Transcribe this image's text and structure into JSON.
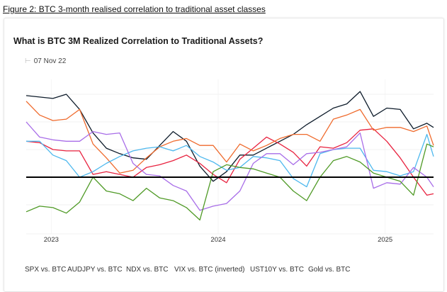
{
  "caption": "Figure 2: BTC 3-month realised correlation to traditional asset classes",
  "chart_data": {
    "type": "line",
    "title": "What is BTC 3M Realized Correlation to Traditional Assets?",
    "date_label": "07 Nov 22",
    "xlabel": "",
    "ylabel": "",
    "x_tick_labels": [
      "2023",
      "2024",
      "2025"
    ],
    "x_ticks": [
      2023,
      2024,
      2025
    ],
    "xlim": [
      2022.85,
      2025.29
    ],
    "ylim": [
      -0.35,
      0.69
    ],
    "zero_line": 0,
    "grid": true,
    "legend_position": "bottom",
    "x": [
      2022.85,
      2022.93,
      2023.01,
      2023.09,
      2023.17,
      2023.25,
      2023.33,
      2023.41,
      2023.49,
      2023.57,
      2023.65,
      2023.73,
      2023.81,
      2023.89,
      2023.97,
      2024.05,
      2024.13,
      2024.21,
      2024.29,
      2024.37,
      2024.45,
      2024.53,
      2024.61,
      2024.69,
      2024.77,
      2024.85,
      2024.93,
      2025.01,
      2025.09,
      2025.17,
      2025.25,
      2025.29
    ],
    "series": [
      {
        "name": "SPX vs. BTC",
        "color": "#0d1b2a",
        "values": [
          0.59,
          0.58,
          0.57,
          0.6,
          0.49,
          0.32,
          0.21,
          0.17,
          0.14,
          0.13,
          0.23,
          0.33,
          0.26,
          0.08,
          -0.03,
          0.04,
          0.16,
          0.16,
          0.21,
          0.26,
          0.31,
          0.38,
          0.44,
          0.5,
          0.53,
          0.62,
          0.44,
          0.5,
          0.49,
          0.35,
          0.39,
          0.36
        ]
      },
      {
        "name": "AUDJPY vs. BTC",
        "color": "#e8223f",
        "values": [
          0.26,
          0.25,
          0.2,
          0.19,
          0.19,
          0.02,
          0.04,
          0.02,
          0.0,
          0.07,
          0.09,
          0.12,
          0.16,
          0.1,
          0.02,
          -0.04,
          0.13,
          0.21,
          0.29,
          0.24,
          0.18,
          0.08,
          0.22,
          0.21,
          0.25,
          0.34,
          0.35,
          0.26,
          0.14,
          0.0,
          -0.13,
          -0.12
        ]
      },
      {
        "name": "NDX vs. BTC",
        "color": "#ef6a2c",
        "values": [
          0.55,
          0.45,
          0.41,
          0.42,
          0.49,
          0.24,
          0.14,
          0.03,
          0.05,
          0.14,
          0.22,
          0.26,
          0.28,
          0.23,
          0.23,
          0.11,
          0.24,
          0.19,
          0.23,
          0.28,
          0.31,
          0.31,
          0.26,
          0.42,
          0.45,
          0.49,
          0.34,
          0.36,
          0.36,
          0.33,
          0.37,
          0.23
        ]
      },
      {
        "name": "VIX vs. BTC (inverted)",
        "color": "#4db8ee",
        "values": [
          0.26,
          0.26,
          0.16,
          0.12,
          0.0,
          0.04,
          0.1,
          0.15,
          0.19,
          0.21,
          0.22,
          0.19,
          0.23,
          0.15,
          0.11,
          0.05,
          0.07,
          0.15,
          0.14,
          0.12,
          -0.01,
          -0.07,
          0.17,
          0.2,
          0.21,
          0.21,
          0.05,
          0.04,
          0.01,
          0.04,
          0.31,
          0.15
        ]
      },
      {
        "name": "UST10Y vs. BTC",
        "color": "#a86de8",
        "values": [
          0.4,
          0.29,
          0.27,
          0.26,
          0.26,
          0.33,
          0.31,
          0.32,
          0.1,
          0.02,
          0.01,
          -0.06,
          -0.1,
          -0.24,
          -0.21,
          -0.19,
          -0.1,
          0.1,
          0.17,
          0.17,
          0.09,
          0.17,
          0.18,
          0.2,
          0.22,
          0.32,
          -0.08,
          -0.04,
          -0.05,
          0.07,
          0.0,
          -0.07
        ]
      },
      {
        "name": "Gold vs. BTC",
        "color": "#4f9a26",
        "values": [
          -0.25,
          -0.21,
          -0.22,
          -0.26,
          -0.18,
          0.0,
          -0.1,
          -0.12,
          -0.17,
          -0.08,
          -0.15,
          -0.17,
          -0.22,
          -0.31,
          0.04,
          0.09,
          0.07,
          0.06,
          0.03,
          0.0,
          -0.1,
          -0.17,
          0.0,
          0.12,
          0.15,
          0.11,
          0.03,
          0.0,
          -0.03,
          -0.13,
          0.24,
          0.22
        ]
      }
    ]
  }
}
